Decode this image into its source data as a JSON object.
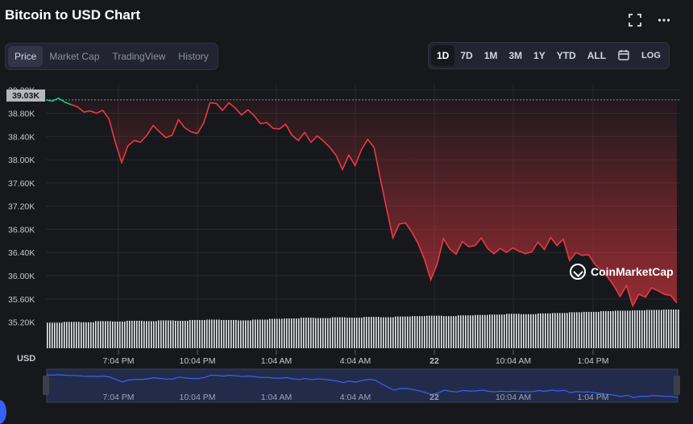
{
  "header": {
    "title": "Bitcoin to USD Chart",
    "fullscreen_icon": "fullscreen-icon",
    "more_icon": "more-dots-icon"
  },
  "view_tabs": [
    {
      "label": "Price",
      "active": true
    },
    {
      "label": "Market Cap",
      "active": false
    },
    {
      "label": "TradingView",
      "active": false
    },
    {
      "label": "History",
      "active": false
    }
  ],
  "range_tabs": [
    {
      "label": "1D",
      "active": true
    },
    {
      "label": "7D",
      "active": false
    },
    {
      "label": "1M",
      "active": false
    },
    {
      "label": "3M",
      "active": false
    },
    {
      "label": "1Y",
      "active": false
    },
    {
      "label": "YTD",
      "active": false
    },
    {
      "label": "ALL",
      "active": false
    }
  ],
  "calendar_icon": "calendar-icon",
  "log_label": "LOG",
  "watermark": "CoinMarketCap",
  "currency_label": "USD",
  "colors": {
    "up": "#16c784",
    "down": "#ea3943",
    "volume": "#e6e8ea",
    "navigator_line": "#3861fb",
    "accent": "#3861fb"
  },
  "chart_data": {
    "type": "line",
    "series": [
      {
        "values": [
          39030,
          39010,
          39060,
          38990,
          38950,
          38910,
          38820,
          38840,
          38800,
          38850,
          38700,
          38300,
          37950,
          38240,
          38330,
          38300,
          38420,
          38590,
          38480,
          38380,
          38420,
          38690,
          38550,
          38480,
          38450,
          38630,
          38980,
          38970,
          38850,
          38980,
          38890,
          38770,
          38860,
          38760,
          38620,
          38640,
          38540,
          38530,
          38610,
          38420,
          38330,
          38470,
          38300,
          38410,
          38320,
          38210,
          38070,
          37830,
          38080,
          37900,
          38170,
          38350,
          38210,
          37670,
          37150,
          36650,
          36890,
          36910,
          36750,
          36550,
          36280,
          35930,
          36200,
          36640,
          36460,
          36370,
          36590,
          36500,
          36520,
          36650,
          36470,
          36380,
          36470,
          36400,
          36480,
          36420,
          36380,
          36410,
          36580,
          36450,
          36660,
          36520,
          36630,
          36260,
          36400,
          36350,
          36360,
          36200,
          36090,
          35980,
          35830,
          35640,
          35830,
          35480,
          35680,
          35630,
          35790,
          35740,
          35680,
          35660,
          35530
        ]
      }
    ],
    "x_tick_labels": [
      "7:04 PM",
      "10:04 PM",
      "1:04 AM",
      "4:04 AM",
      "22",
      "10:04 AM",
      "1:04 PM"
    ],
    "y_tick_labels": [
      "39.20K",
      "38.80K",
      "38.40K",
      "38.00K",
      "37.60K",
      "37.20K",
      "36.80K",
      "36.40K",
      "36.00K",
      "35.60K",
      "35.20K"
    ],
    "ylim": [
      35000,
      39300
    ],
    "open_value": 39030,
    "open_value_label": "39.03K",
    "volume": {
      "relative_values": [
        0.66,
        0.68,
        0.67,
        0.7,
        0.69,
        0.71,
        0.7,
        0.72,
        0.71,
        0.73,
        0.74,
        0.73,
        0.72,
        0.74,
        0.76,
        0.77,
        0.79,
        0.78,
        0.8,
        0.79,
        0.81,
        0.8,
        0.82,
        0.83,
        0.84,
        0.83,
        0.85,
        0.86,
        0.87,
        0.89,
        0.88,
        0.9,
        0.91,
        0.93,
        0.94,
        0.96,
        0.97,
        0.98,
        0.99,
        1.0
      ]
    },
    "grid": true,
    "area_fill": true
  }
}
